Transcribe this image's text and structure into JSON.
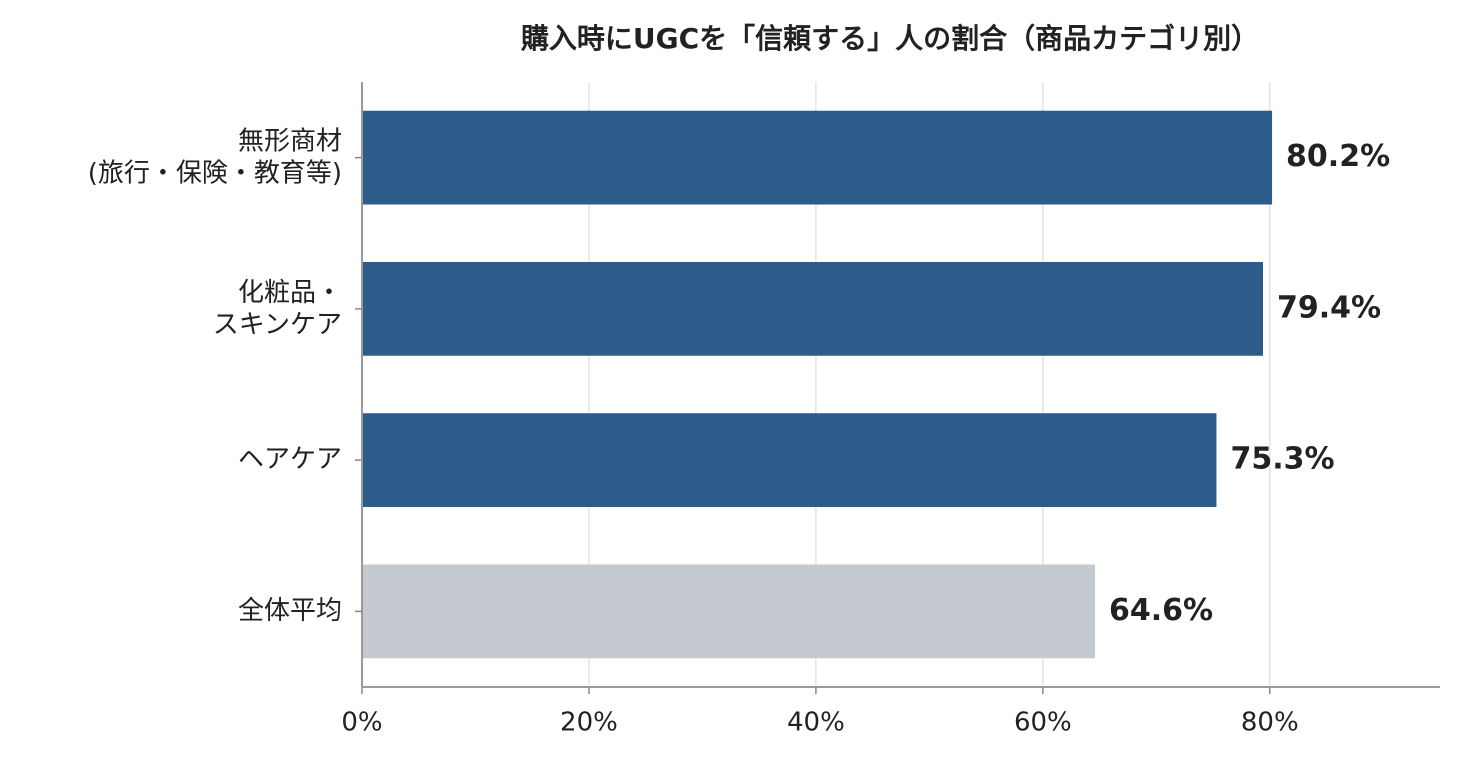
{
  "chart_data": {
    "type": "hbar",
    "title": "購入時にUGCを「信頼する」人の割合（商品カテゴリ別）",
    "categories": [
      "無形商材\n(旅行・保険・教育等)",
      "化粧品・\nスキンケア",
      "ヘアケア",
      "全体平均"
    ],
    "values": [
      80.2,
      79.4,
      75.3,
      64.6
    ],
    "value_labels": [
      "80.2%",
      "79.4%",
      "75.3%",
      "64.6%"
    ],
    "colors": [
      "#2e5c8a",
      "#2e5c8a",
      "#2e5c8a",
      "#c5c9d0"
    ],
    "xlim": [
      0,
      95
    ],
    "xticks": [
      {
        "value": 0,
        "label": "0%"
      },
      {
        "value": 20,
        "label": "20%"
      },
      {
        "value": 40,
        "label": "40%"
      },
      {
        "value": 60,
        "label": "60%"
      },
      {
        "value": 80,
        "label": "80%"
      }
    ],
    "grid": true
  }
}
